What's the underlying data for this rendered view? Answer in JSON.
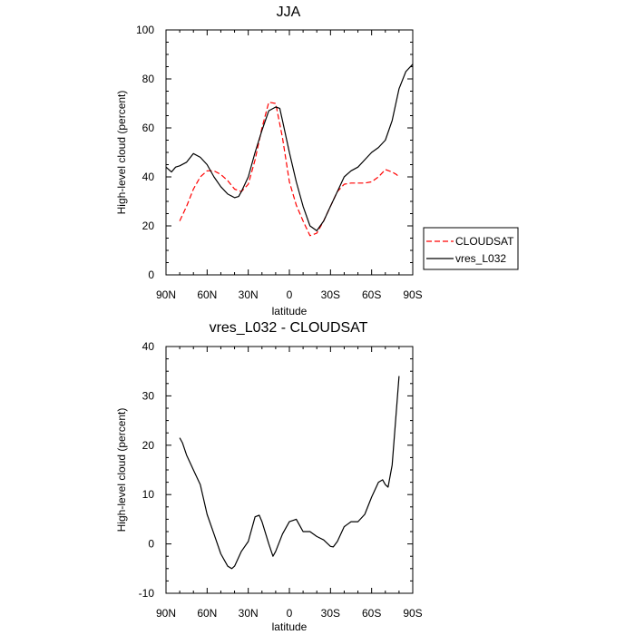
{
  "chart_data": [
    {
      "type": "line",
      "title": "JJA",
      "xlabel": "latitude",
      "ylabel": "High-level cloud (percent)",
      "xlim": [
        -90,
        90
      ],
      "ylim": [
        0,
        100
      ],
      "x_ticks": [
        -90,
        -60,
        -30,
        0,
        30,
        60,
        90
      ],
      "x_tick_labels": [
        "90N",
        "60N",
        "30N",
        "0",
        "30S",
        "60S",
        "90S"
      ],
      "y_ticks": [
        0,
        20,
        40,
        60,
        80,
        100
      ],
      "y_tick_labels": [
        "0",
        "20",
        "40",
        "60",
        "80",
        "100"
      ],
      "legend_position": "right-outside",
      "series": [
        {
          "name": "CLOUDSAT",
          "color": "#ff0000",
          "dash": "dashed",
          "x": [
            -80,
            -75,
            -70,
            -65,
            -60,
            -55,
            -50,
            -45,
            -40,
            -35,
            -30,
            -25,
            -20,
            -15,
            -10,
            -5,
            0,
            5,
            10,
            15,
            20,
            25,
            30,
            35,
            40,
            45,
            50,
            55,
            60,
            65,
            70,
            75,
            78,
            80
          ],
          "y": [
            22,
            28,
            35,
            40,
            42.5,
            42.5,
            41,
            38.5,
            35,
            34,
            37,
            47,
            60,
            70.5,
            70,
            56,
            38,
            28.5,
            22,
            16,
            17,
            22,
            28,
            34,
            37,
            37.5,
            37.5,
            37.5,
            38,
            40,
            43,
            42,
            41,
            40
          ]
        },
        {
          "name": "vres_L032",
          "color": "#000000",
          "dash": "solid",
          "x": [
            -90,
            -86,
            -83,
            -80,
            -75,
            -70,
            -65,
            -60,
            -55,
            -50,
            -45,
            -40,
            -37,
            -35,
            -30,
            -25,
            -20,
            -15,
            -10,
            -7,
            -5,
            0,
            5,
            10,
            15,
            20,
            25,
            30,
            35,
            40,
            45,
            50,
            55,
            60,
            65,
            70,
            75,
            80,
            85,
            90
          ],
          "y": [
            44,
            42,
            44,
            44.5,
            46,
            49.5,
            48,
            45,
            40,
            36,
            33,
            31.5,
            32,
            34,
            40,
            50,
            59,
            67,
            68.5,
            68,
            63,
            50,
            38,
            28,
            20,
            18,
            22,
            28,
            34,
            40,
            42.5,
            44,
            47,
            50,
            52,
            55,
            63,
            76,
            83,
            86
          ]
        }
      ]
    },
    {
      "type": "line",
      "title": "vres_L032 - CLOUDSAT",
      "xlabel": "latitude",
      "ylabel": "High-level cloud (percent)",
      "xlim": [
        -90,
        90
      ],
      "ylim": [
        -10,
        40
      ],
      "x_ticks": [
        -90,
        -60,
        -30,
        0,
        30,
        60,
        90
      ],
      "x_tick_labels": [
        "90N",
        "60N",
        "30N",
        "0",
        "30S",
        "60S",
        "90S"
      ],
      "y_ticks": [
        -10,
        0,
        10,
        20,
        30,
        40
      ],
      "y_tick_labels": [
        "-10",
        "0",
        "10",
        "20",
        "30",
        "40"
      ],
      "series": [
        {
          "name": "vres_L032 - CLOUDSAT",
          "color": "#000000",
          "dash": "solid",
          "x": [
            -80,
            -78,
            -75,
            -70,
            -65,
            -60,
            -55,
            -50,
            -45,
            -42,
            -40,
            -35,
            -30,
            -25,
            -22,
            -20,
            -15,
            -12,
            -10,
            -5,
            0,
            5,
            8,
            10,
            15,
            20,
            25,
            30,
            32,
            35,
            40,
            45,
            50,
            55,
            60,
            65,
            68,
            70,
            72,
            75,
            80
          ],
          "y": [
            21.5,
            20.5,
            18,
            15,
            12,
            6,
            2,
            -2,
            -4.5,
            -5,
            -4.5,
            -1.5,
            0.5,
            5.5,
            5.8,
            4.5,
            0,
            -2.5,
            -1.5,
            2,
            4.5,
            5,
            3.5,
            2.5,
            2.5,
            1.5,
            0.8,
            -0.5,
            -0.6,
            0.5,
            3.5,
            4.5,
            4.5,
            6,
            9.5,
            12.5,
            13,
            12,
            11.5,
            16,
            34
          ]
        }
      ]
    }
  ],
  "legend": {
    "items": [
      {
        "label": "CLOUDSAT",
        "color": "#ff0000",
        "dash": "dashed"
      },
      {
        "label": "vres_L032",
        "color": "#000000",
        "dash": "solid"
      }
    ]
  }
}
